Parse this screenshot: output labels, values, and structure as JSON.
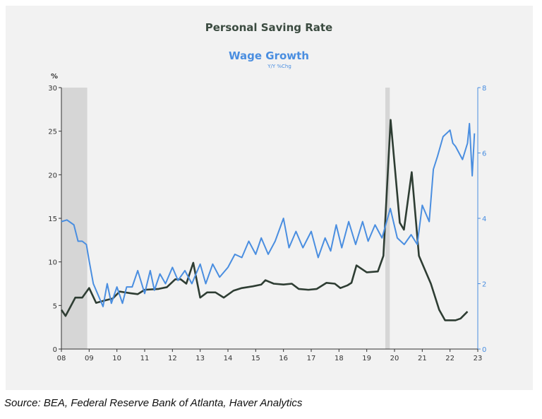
{
  "chart_data": {
    "type": "line",
    "ylabel": "%",
    "y2_label": "Y/Y %Chg",
    "source": "Source: BEA, Federal Reserve Bank of Atlanta, Haver Analytics",
    "xlim": [
      2008,
      2023
    ],
    "xticks": [
      {
        "value": 2008,
        "label": "08"
      },
      {
        "value": 2009,
        "label": "09"
      },
      {
        "value": 2010,
        "label": "10"
      },
      {
        "value": 2011,
        "label": "11"
      },
      {
        "value": 2012,
        "label": "12"
      },
      {
        "value": 2013,
        "label": "13"
      },
      {
        "value": 2014,
        "label": "14"
      },
      {
        "value": 2015,
        "label": "15"
      },
      {
        "value": 2016,
        "label": "16"
      },
      {
        "value": 2017,
        "label": "17"
      },
      {
        "value": 2018,
        "label": "18"
      },
      {
        "value": 2019,
        "label": "19"
      },
      {
        "value": 2020,
        "label": "20"
      },
      {
        "value": 2021,
        "label": "21"
      },
      {
        "value": 2022,
        "label": "22"
      },
      {
        "value": 2023,
        "label": "23"
      }
    ],
    "ylim": [
      0,
      30
    ],
    "yticks": [
      0,
      5,
      10,
      15,
      20,
      25,
      30
    ],
    "y2lim": [
      0,
      8
    ],
    "y2ticks": [
      0,
      2,
      4,
      6,
      8
    ],
    "shading": [
      [
        2008,
        2008.93
      ],
      [
        2019.67,
        2019.83
      ]
    ],
    "shading_color": "#d6d6d6",
    "series": [
      {
        "name": "Personal Saving Rate",
        "color": "#2e3d33",
        "axis": "y",
        "x": [
          2008.0,
          2008.15,
          2008.35,
          2008.5,
          2008.75,
          2009.0,
          2009.25,
          2009.6,
          2009.85,
          2010.1,
          2010.5,
          2010.75,
          2011.0,
          2011.5,
          2011.8,
          2012.1,
          2012.3,
          2012.5,
          2012.75,
          2013.0,
          2013.25,
          2013.55,
          2013.85,
          2014.2,
          2014.5,
          2014.9,
          2015.2,
          2015.35,
          2015.65,
          2016.0,
          2016.3,
          2016.55,
          2016.9,
          2017.2,
          2017.55,
          2017.85,
          2018.05,
          2018.3,
          2018.45,
          2018.63,
          2019.0,
          2019.4,
          2019.6,
          2019.86,
          2020.19,
          2020.34,
          2020.62,
          2020.88,
          2021.31,
          2021.61,
          2021.82,
          2022.2,
          2022.38,
          2022.63
        ],
        "values": [
          4.5,
          3.8,
          5.0,
          5.9,
          5.9,
          7.0,
          5.3,
          5.6,
          5.8,
          6.6,
          6.4,
          6.3,
          6.8,
          6.9,
          7.1,
          8.0,
          8.0,
          7.5,
          9.9,
          5.9,
          6.5,
          6.5,
          5.9,
          6.7,
          7.0,
          7.2,
          7.4,
          7.9,
          7.5,
          7.4,
          7.5,
          6.9,
          6.8,
          6.9,
          7.6,
          7.5,
          7.0,
          7.3,
          7.6,
          9.6,
          8.8,
          8.9,
          10.7,
          26.3,
          14.5,
          13.7,
          20.3,
          10.7,
          7.5,
          4.5,
          3.3,
          3.3,
          3.5,
          4.3
        ]
      },
      {
        "name": "Wage Growth",
        "color": "#4a8ee0",
        "axis": "y2",
        "x": [
          2008.0,
          2008.2,
          2008.45,
          2008.6,
          2008.75,
          2008.9,
          2009.0,
          2009.15,
          2009.35,
          2009.5,
          2009.65,
          2009.8,
          2010.0,
          2010.2,
          2010.35,
          2010.55,
          2010.75,
          2011.0,
          2011.2,
          2011.35,
          2011.55,
          2011.75,
          2012.0,
          2012.2,
          2012.45,
          2012.7,
          2013.0,
          2013.2,
          2013.45,
          2013.7,
          2014.0,
          2014.25,
          2014.5,
          2014.75,
          2015.0,
          2015.2,
          2015.45,
          2015.7,
          2016.0,
          2016.2,
          2016.45,
          2016.7,
          2017.0,
          2017.25,
          2017.5,
          2017.7,
          2017.9,
          2018.1,
          2018.35,
          2018.6,
          2018.85,
          2019.05,
          2019.3,
          2019.55,
          2019.85,
          2020.1,
          2020.35,
          2020.6,
          2020.82,
          2021.0,
          2021.25,
          2021.4,
          2021.55,
          2021.75,
          2022.0,
          2022.1,
          2022.2,
          2022.45,
          2022.63,
          2022.7,
          2022.8,
          2022.88
        ],
        "values": [
          3.9,
          3.95,
          3.8,
          3.3,
          3.3,
          3.2,
          2.7,
          2.0,
          1.6,
          1.3,
          2.0,
          1.4,
          1.9,
          1.4,
          1.9,
          1.9,
          2.4,
          1.7,
          2.4,
          1.8,
          2.3,
          2.0,
          2.5,
          2.1,
          2.4,
          2.0,
          2.6,
          2.0,
          2.6,
          2.2,
          2.5,
          2.9,
          2.8,
          3.3,
          2.9,
          3.4,
          2.9,
          3.3,
          4.0,
          3.1,
          3.6,
          3.1,
          3.6,
          2.8,
          3.4,
          3.0,
          3.8,
          3.1,
          3.9,
          3.2,
          3.9,
          3.3,
          3.8,
          3.4,
          4.3,
          3.4,
          3.2,
          3.5,
          3.2,
          4.4,
          3.9,
          5.5,
          5.9,
          6.5,
          6.7,
          6.3,
          6.2,
          5.8,
          6.3,
          6.9,
          5.3,
          6.6
        ]
      }
    ]
  }
}
